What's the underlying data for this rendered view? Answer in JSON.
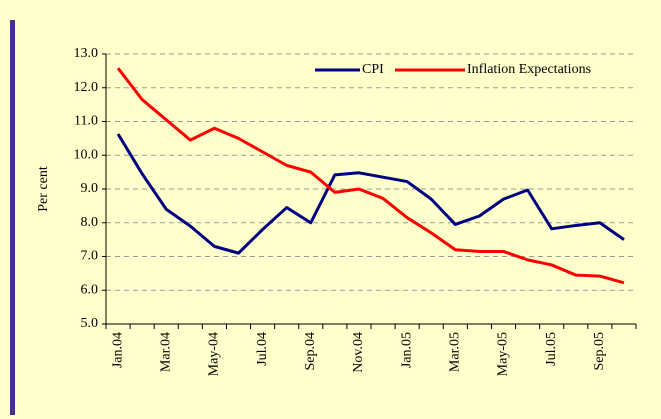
{
  "chart_data": {
    "type": "line",
    "y_label": "Per cent",
    "categories": [
      "Jan.04",
      null,
      "Mar.04",
      null,
      "May-04",
      null,
      "Jul.04",
      null,
      "Sep.04",
      null,
      "Nov.04",
      null,
      "Jan.05",
      null,
      "Mar.05",
      null,
      "May-05",
      null,
      "Jul.05",
      null,
      "Sep.05",
      null
    ],
    "series": [
      {
        "name": "CPI",
        "color": "#000080",
        "values": [
          10.63,
          9.45,
          8.4,
          7.9,
          7.3,
          7.1,
          7.8,
          8.45,
          8.0,
          9.42,
          9.48,
          9.35,
          9.22,
          8.7,
          7.95,
          8.2,
          8.7,
          8.97,
          7.82,
          7.92,
          8.0,
          7.5
        ]
      },
      {
        "name": "Inflation Expectations",
        "color": "#ff0000",
        "values": [
          12.58,
          11.65,
          11.05,
          10.45,
          10.8,
          10.5,
          10.1,
          9.7,
          9.5,
          8.9,
          9.0,
          8.72,
          8.15,
          7.7,
          7.2,
          7.15,
          7.15,
          6.9,
          6.75,
          6.45,
          6.42,
          6.22
        ]
      }
    ],
    "ylim": [
      5,
      13
    ],
    "yticks": [
      {
        "value": 5,
        "label": "5.0"
      },
      {
        "value": 6,
        "label": "6.0"
      },
      {
        "value": 7,
        "label": "7.0"
      },
      {
        "value": 8,
        "label": "8.0"
      },
      {
        "value": 9,
        "label": "9.0"
      },
      {
        "value": 10,
        "label": "10.0"
      },
      {
        "value": 11,
        "label": "11.0"
      },
      {
        "value": 12,
        "label": "12.0"
      },
      {
        "value": 13,
        "label": "13.0"
      }
    ],
    "grid": true,
    "legend": "top"
  }
}
